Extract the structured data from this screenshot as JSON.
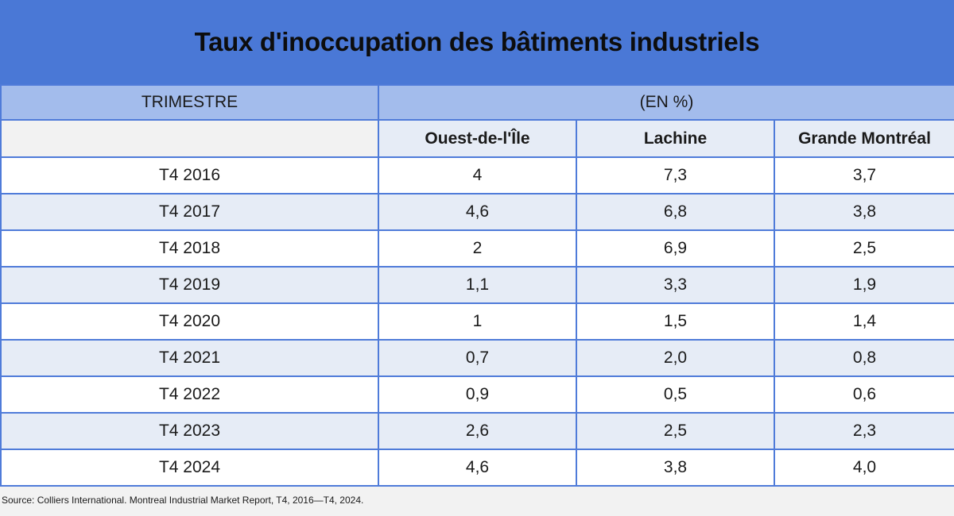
{
  "title": "Taux d'inoccupation des bâtiments industriels",
  "header": {
    "period_label": "TRIMESTRE",
    "unit_label": "(EN %)",
    "columns": [
      "Ouest-de-l'Île",
      "Lachine",
      "Grande Montréal"
    ]
  },
  "rows": [
    {
      "period": "T4 2016",
      "values": [
        "4",
        "7,3",
        "3,7"
      ]
    },
    {
      "period": "T4 2017",
      "values": [
        "4,6",
        "6,8",
        "3,8"
      ]
    },
    {
      "period": "T4 2018",
      "values": [
        "2",
        "6,9",
        "2,5"
      ]
    },
    {
      "period": "T4 2019",
      "values": [
        "1,1",
        "3,3",
        "1,9"
      ]
    },
    {
      "period": "T4 2020",
      "values": [
        "1",
        "1,5",
        "1,4"
      ]
    },
    {
      "period": "T4 2021",
      "values": [
        "0,7",
        "2,0",
        "0,8"
      ]
    },
    {
      "period": "T4 2022",
      "values": [
        "0,9",
        "0,5",
        "0,6"
      ]
    },
    {
      "period": "T4 2023",
      "values": [
        "2,6",
        "2,5",
        "2,3"
      ]
    },
    {
      "period": "T4 2024",
      "values": [
        "4,6",
        "3,8",
        "4,0"
      ]
    }
  ],
  "source": "Source: Colliers International. Montreal Industrial Market Report, T4, 2016—T4, 2024.",
  "colors": {
    "title_bg": "#4a78d6",
    "header_bg": "#a3bcec",
    "row_alt_bg": "#e6ecf6",
    "border": "#4f7bd9"
  },
  "chart_data": {
    "type": "table",
    "title": "Taux d'inoccupation des bâtiments industriels",
    "categories": [
      "T4 2016",
      "T4 2017",
      "T4 2018",
      "T4 2019",
      "T4 2020",
      "T4 2021",
      "T4 2022",
      "T4 2023",
      "T4 2024"
    ],
    "series": [
      {
        "name": "Ouest-de-l'Île",
        "values": [
          4,
          4.6,
          2,
          1.1,
          1,
          0.7,
          0.9,
          2.6,
          4.6
        ]
      },
      {
        "name": "Lachine",
        "values": [
          7.3,
          6.8,
          6.9,
          3.3,
          1.5,
          2.0,
          0.5,
          2.5,
          3.8
        ]
      },
      {
        "name": "Grande Montréal",
        "values": [
          3.7,
          3.8,
          2.5,
          1.9,
          1.4,
          0.8,
          0.6,
          2.3,
          4.0
        ]
      }
    ]
  }
}
